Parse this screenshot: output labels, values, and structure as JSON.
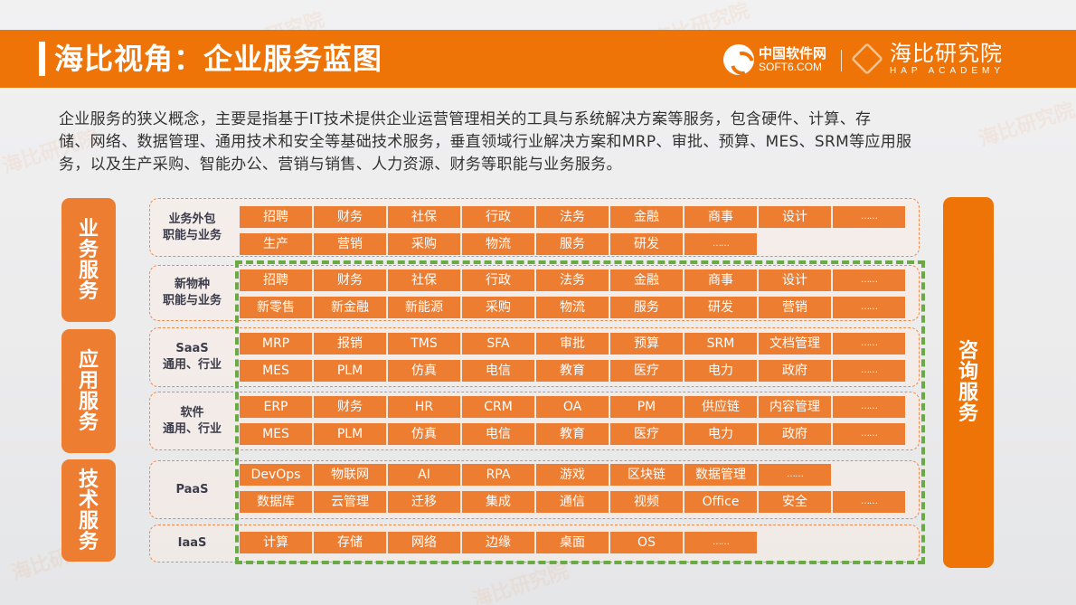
{
  "header": {
    "title": "海比视角：企业服务蓝图",
    "logo_soft6_cn": "中国软件网",
    "logo_soft6_en": "SOFT6.COM",
    "logo_hap_cn": "海比研究院",
    "logo_hap_en": "HAP ACADEMY"
  },
  "intro": {
    "lines": [
      "企业服务的狭义概念，主要是指基于IT技术提供企业运营管理相关的工具与系统解决方案等服务，包含硬件、计算、存",
      "储、网络、数据管理、通用技术和安全等基础技术服务，垂直领域行业解决方案和MRP、审批、预算、MES、SRM等应用服",
      "务，以及生产采购、智能办公、营销与销售、人力资源、财务等职能与业务服务。"
    ]
  },
  "categories": [
    {
      "label": "业务服务"
    },
    {
      "label": "应用服务"
    },
    {
      "label": "技术服务"
    }
  ],
  "right_category": {
    "label": "咨询服务"
  },
  "groups": [
    {
      "label_line1": "业务外包",
      "label_line2": "职能与业务",
      "rows": [
        [
          "招聘",
          "财务",
          "社保",
          "行政",
          "法务",
          "金融",
          "商事",
          "设计",
          "……"
        ],
        [
          "生产",
          "营销",
          "采购",
          "物流",
          "服务",
          "研发",
          "……"
        ]
      ]
    },
    {
      "label_line1": "新物种",
      "label_line2": "职能与业务",
      "rows": [
        [
          "招聘",
          "财务",
          "社保",
          "行政",
          "法务",
          "金融",
          "商事",
          "设计",
          "……"
        ],
        [
          "新零售",
          "新金融",
          "新能源",
          "采购",
          "物流",
          "服务",
          "研发",
          "营销",
          "……"
        ]
      ]
    },
    {
      "label_line1": "SaaS",
      "label_line2": "通用、行业",
      "rows": [
        [
          "MRP",
          "报销",
          "TMS",
          "SFA",
          "审批",
          "预算",
          "SRM",
          "文档管理",
          "……"
        ],
        [
          "MES",
          "PLM",
          "仿真",
          "电信",
          "教育",
          "医疗",
          "电力",
          "政府",
          "……"
        ]
      ]
    },
    {
      "label_line1": "软件",
      "label_line2": "通用、行业",
      "rows": [
        [
          "ERP",
          "财务",
          "HR",
          "CRM",
          "OA",
          "PM",
          "供应链",
          "内容管理",
          "……"
        ],
        [
          "MES",
          "PLM",
          "仿真",
          "电信",
          "教育",
          "医疗",
          "电力",
          "政府",
          "……"
        ]
      ]
    },
    {
      "label_line1": "PaaS",
      "label_line2": "",
      "rows": [
        [
          "DevOps",
          "物联网",
          "AI",
          "RPA",
          "游戏",
          "区块链",
          "数据管理",
          "……"
        ],
        [
          "数据库",
          "云管理",
          "迁移",
          "集成",
          "通信",
          "视频",
          "Office",
          "安全",
          "……"
        ]
      ]
    },
    {
      "label_line1": "IaaS",
      "label_line2": "",
      "rows": [
        [
          "计算",
          "存储",
          "网络",
          "边缘",
          "桌面",
          "OS",
          "……"
        ]
      ]
    }
  ],
  "colors": {
    "header_orange": "#ee7407",
    "cell_orange": "#ed7d31",
    "green_dash": "#6aaa45",
    "label_text": "#3c3c4a"
  }
}
